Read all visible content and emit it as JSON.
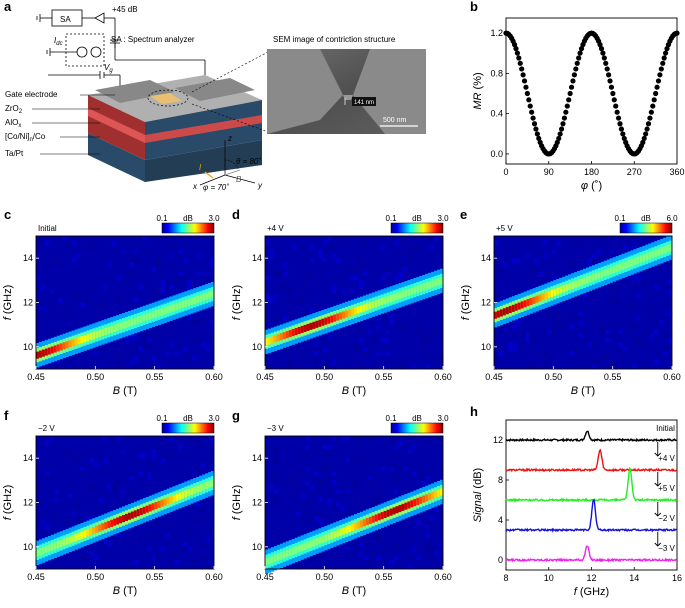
{
  "panel_labels": {
    "a": "a",
    "b": "b",
    "c": "c",
    "d": "d",
    "e": "e",
    "f": "f",
    "g": "g",
    "h": "h"
  },
  "schematic": {
    "sa_box": "SA",
    "gain": "+45 dB",
    "sa_legend": "SA : Spectrum analyzer",
    "idc_label": "I",
    "idc_sub": "dc",
    "vg_label": "V",
    "vg_sub": "g",
    "layers": [
      "Gate electrode",
      "ZrO",
      "AlO",
      "[Co/Ni]",
      "Ta/Pt"
    ],
    "layer_subs": [
      "",
      "2",
      "x",
      "n",
      "/Co"
    ],
    "sem_title": "SEM image of contriction structure",
    "sem_gap": "141 nm",
    "sem_scale": "500 nm",
    "axes": {
      "z": "z",
      "x": "x",
      "y": "y"
    },
    "theta": "θ = 80˚",
    "phi": "φ = 70˚",
    "current": "I",
    "field": "B"
  },
  "colorbar_unit": "dB",
  "colors": {
    "trace_black": "#000000",
    "trace_red": "#ee1111",
    "trace_green": "#22ee22",
    "trace_blue": "#1111dd",
    "trace_magenta": "#ee22ee"
  },
  "chart_data": [
    {
      "id": "b",
      "type": "line",
      "xlabel": "φ (˚)",
      "ylabel": "MR (%)",
      "xlim": [
        0,
        360
      ],
      "ylim": [
        -0.1,
        1.35
      ],
      "xticks": [
        "0",
        "90",
        "180",
        "270",
        "360"
      ],
      "yticks": [
        "0.0",
        "0.4",
        "0.8",
        "1.2"
      ],
      "series": [
        {
          "name": "MR",
          "formula": "0.6+0.6*cos(2φ)",
          "x": [
            0,
            45,
            90,
            135,
            180,
            225,
            270,
            315,
            360
          ],
          "y": [
            1.2,
            0.6,
            0.0,
            0.6,
            1.2,
            0.6,
            0.0,
            0.6,
            1.2
          ]
        }
      ]
    },
    {
      "id": "c",
      "type": "heatmap",
      "tag": "Initial",
      "xlabel": "B (T)",
      "ylabel": "f (GHz)",
      "xlim": [
        0.45,
        0.6
      ],
      "ylim": [
        9,
        15
      ],
      "xticks": [
        "0.45",
        "0.50",
        "0.55",
        "0.60"
      ],
      "yticks": [
        "10",
        "12",
        "14"
      ],
      "cbar_min": "0.1",
      "cbar_max": "3.0",
      "ridge": {
        "B": [
          0.45,
          0.6
        ],
        "f": [
          9.6,
          12.4
        ]
      },
      "peak_B": 0.45
    },
    {
      "id": "d",
      "type": "heatmap",
      "tag": "+4 V",
      "xlabel": "B (T)",
      "ylabel": "f (GHz)",
      "xlim": [
        0.45,
        0.6
      ],
      "ylim": [
        9,
        15
      ],
      "xticks": [
        "0.45",
        "0.50",
        "0.55",
        "0.60"
      ],
      "yticks": [
        "10",
        "12",
        "14"
      ],
      "cbar_min": "0.1",
      "cbar_max": "3.0",
      "ridge": {
        "B": [
          0.45,
          0.6
        ],
        "f": [
          10.2,
          13.0
        ]
      },
      "peak_B": 0.49
    },
    {
      "id": "e",
      "type": "heatmap",
      "tag": "+5 V",
      "xlabel": "B (T)",
      "ylabel": "f (GHz)",
      "xlim": [
        0.45,
        0.6
      ],
      "ylim": [
        9,
        15
      ],
      "xticks": [
        "0.45",
        "0.50",
        "0.55",
        "0.60"
      ],
      "yticks": [
        "10",
        "12",
        "14"
      ],
      "cbar_min": "0.1",
      "cbar_max": "6.0",
      "ridge": {
        "B": [
          0.45,
          0.6
        ],
        "f": [
          11.4,
          14.5
        ]
      },
      "peak_B": 0.46
    },
    {
      "id": "f",
      "type": "heatmap",
      "tag": "−2 V",
      "xlabel": "B (T)",
      "ylabel": "f (GHz)",
      "xlim": [
        0.45,
        0.6
      ],
      "ylim": [
        9,
        15
      ],
      "xticks": [
        "0.45",
        "0.50",
        "0.55",
        "0.60"
      ],
      "yticks": [
        "10",
        "12",
        "14"
      ],
      "cbar_min": "0.1",
      "cbar_max": "3.0",
      "ridge": {
        "B": [
          0.45,
          0.6
        ],
        "f": [
          9.7,
          12.9
        ]
      },
      "peak_B": 0.53
    },
    {
      "id": "g",
      "type": "heatmap",
      "tag": "−3 V",
      "xlabel": "B (T)",
      "ylabel": "f (GHz)",
      "xlim": [
        0.45,
        0.6
      ],
      "ylim": [
        9,
        15
      ],
      "xticks": [
        "0.45",
        "0.50",
        "0.55",
        "0.60"
      ],
      "yticks": [
        "10",
        "12",
        "14"
      ],
      "cbar_min": "0.1",
      "cbar_max": "3.0",
      "ridge": {
        "B": [
          0.45,
          0.6
        ],
        "f": [
          9.3,
          12.5
        ]
      },
      "peak_B": 0.56
    },
    {
      "id": "h",
      "type": "line",
      "xlabel": "f (GHz)",
      "ylabel": "Signal (dB)",
      "xlim": [
        8,
        16
      ],
      "ylim": [
        -1,
        14
      ],
      "xticks": [
        "8",
        "10",
        "12",
        "14",
        "16"
      ],
      "yticks": [
        "0",
        "4",
        "8",
        "12"
      ],
      "series": [
        {
          "name": "Initial",
          "offset": 12,
          "peak_f": 11.8,
          "peak_h": 0.9,
          "color": "#000000"
        },
        {
          "name": "+4 V",
          "offset": 9,
          "peak_f": 12.4,
          "peak_h": 2.0,
          "color": "#ee1111"
        },
        {
          "name": "+5 V",
          "offset": 6,
          "peak_f": 13.8,
          "peak_h": 3.2,
          "color": "#22ee22"
        },
        {
          "name": "−2 V",
          "offset": 3,
          "peak_f": 12.1,
          "peak_h": 3.0,
          "color": "#1111dd"
        },
        {
          "name": "−3 V",
          "offset": 0,
          "peak_f": 11.8,
          "peak_h": 1.4,
          "color": "#ee22ee"
        }
      ]
    }
  ]
}
